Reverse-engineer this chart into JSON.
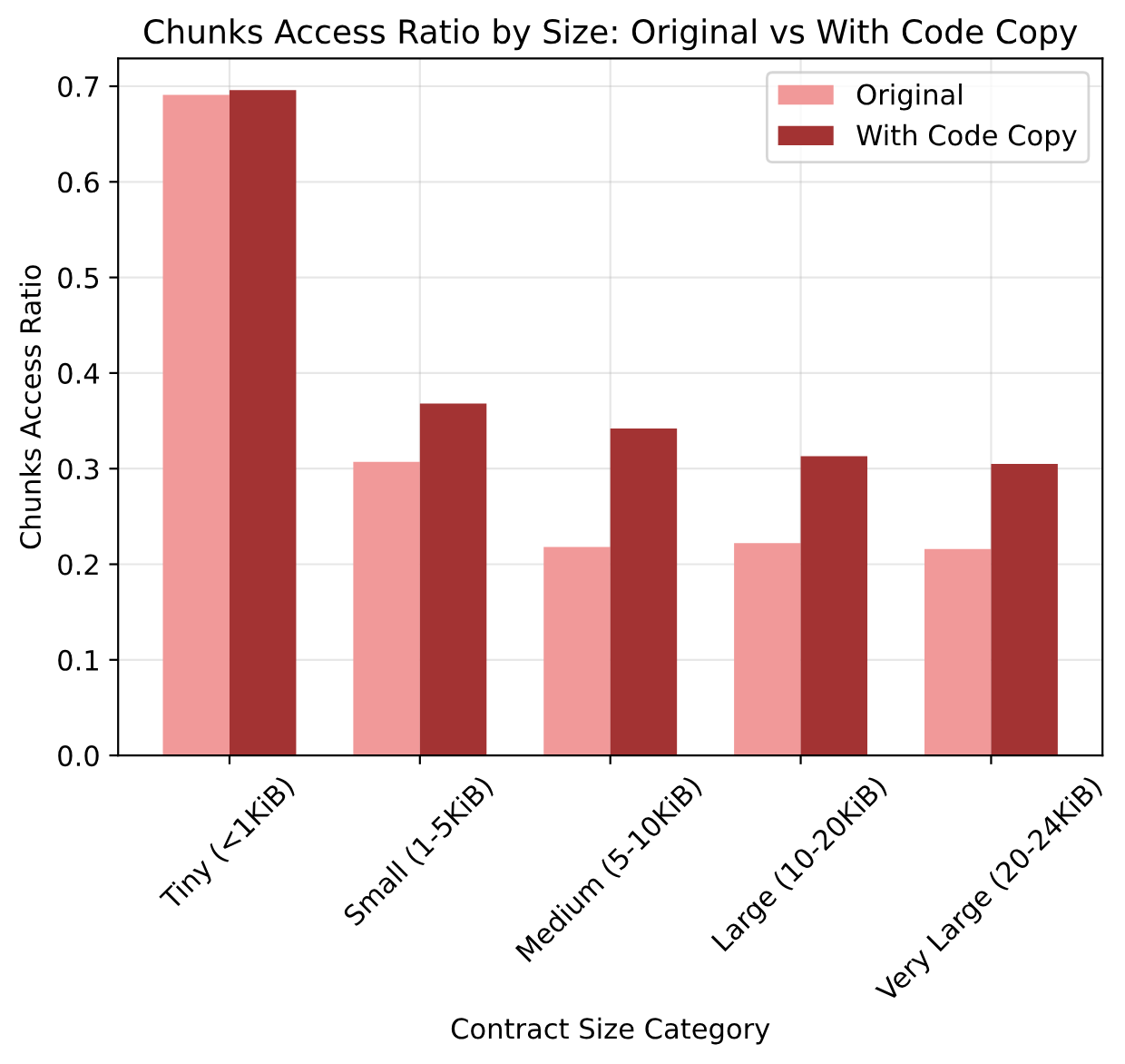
{
  "chart_data": {
    "type": "bar",
    "title": "Chunks Access Ratio by Size: Original vs With Code Copy",
    "xlabel": "Contract Size Category",
    "ylabel": "Chunks Access Ratio",
    "categories": [
      "Tiny (<1KiB)",
      "Small (1-5KiB)",
      "Medium (5-10KiB)",
      "Large (10-20KiB)",
      "Very Large (20-24KiB)"
    ],
    "series": [
      {
        "name": "Original",
        "color": "#f19999",
        "values": [
          0.691,
          0.307,
          0.218,
          0.222,
          0.216
        ]
      },
      {
        "name": "With Code Copy",
        "color": "#a33333",
        "values": [
          0.696,
          0.368,
          0.342,
          0.313,
          0.305
        ]
      }
    ],
    "ylim": [
      0,
      0.729
    ],
    "yticks": [
      {
        "value": 0,
        "label": "0.0"
      },
      0.1,
      0.2,
      0.3,
      0.4,
      0.5,
      0.6,
      0.7
    ],
    "grid": true,
    "legend": "top right"
  }
}
